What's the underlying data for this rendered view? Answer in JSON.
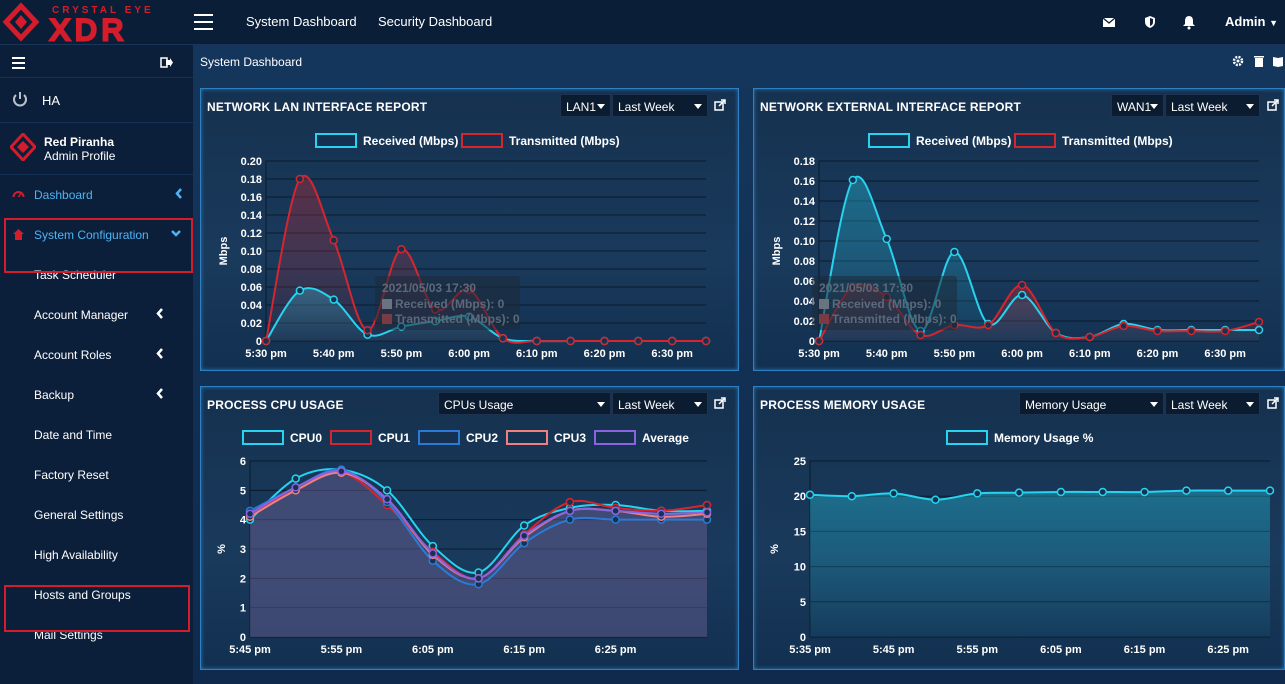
{
  "brand": {
    "top_text": "CRYSTAL EYE",
    "main_text": "XDR"
  },
  "topnav": {
    "system_dashboard": "System Dashboard",
    "security_dashboard": "Security Dashboard",
    "admin": "Admin"
  },
  "sidebar": {
    "ha_label": "HA",
    "profile": {
      "name": "Red Piranha",
      "role": "Admin Profile"
    },
    "items": [
      {
        "label": "Dashboard",
        "active": true,
        "chevron": "left"
      },
      {
        "label": "System Configuration",
        "active": true,
        "chevron": "down"
      },
      {
        "label": "Task Scheduler"
      },
      {
        "label": "Account Manager",
        "chevron": "left"
      },
      {
        "label": "Account Roles",
        "chevron": "left"
      },
      {
        "label": "Backup",
        "chevron": "left"
      },
      {
        "label": "Date and Time"
      },
      {
        "label": "Factory Reset"
      },
      {
        "label": "General Settings"
      },
      {
        "label": "High Availability"
      },
      {
        "label": "Hosts and Groups"
      },
      {
        "label": "Mail Settings"
      }
    ]
  },
  "main": {
    "title": "System Dashboard"
  },
  "colors": {
    "received": "#27d3ee",
    "transmitted": "#d5262f",
    "cpu0": "#27d3ee",
    "cpu1": "#d5262f",
    "cpu2": "#2b7bd6",
    "cpu3": "#f08080",
    "average": "#8a63e0",
    "memory": "#27d3ee",
    "highlight": "#d51c2a"
  },
  "panels": {
    "lan": {
      "title": "NETWORK LAN INTERFACE REPORT",
      "iface": "LAN1",
      "range": "Last Week"
    },
    "wan": {
      "title": "NETWORK EXTERNAL INTERFACE REPORT",
      "iface": "WAN1",
      "range": "Last Week"
    },
    "cpu": {
      "title": "PROCESS CPU USAGE",
      "mode": "CPUs Usage",
      "range": "Last Week"
    },
    "mem": {
      "title": "PROCESS MEMORY USAGE",
      "mode": "Memory Usage",
      "range": "Last Week"
    }
  },
  "chart_data": [
    {
      "id": "lan",
      "type": "line",
      "ylabel": "Mbps",
      "ylim": [
        0,
        0.2
      ],
      "yticks": [
        "0",
        "0.02",
        "0.04",
        "0.06",
        "0.08",
        "0.10",
        "0.12",
        "0.14",
        "0.16",
        "0.18",
        "0.20"
      ],
      "x": [
        0,
        1,
        2,
        3,
        4,
        5,
        6,
        7,
        8,
        9,
        10,
        11,
        12,
        13
      ],
      "xticks": [
        {
          "i": 0,
          "label": "5:30 pm"
        },
        {
          "i": 2,
          "label": "5:40 pm"
        },
        {
          "i": 4,
          "label": "5:50 pm"
        },
        {
          "i": 6,
          "label": "6:00 pm"
        },
        {
          "i": 8,
          "label": "6:10 pm"
        },
        {
          "i": 10,
          "label": "6:20 pm"
        },
        {
          "i": 12,
          "label": "6:30 pm"
        }
      ],
      "series": [
        {
          "name": "Received (Mbps)",
          "color": "received",
          "values": [
            0,
            0.056,
            0.046,
            0.007,
            0.016,
            0.022,
            0.027,
            0.003,
            0,
            0,
            0,
            0,
            0,
            0
          ]
        },
        {
          "name": "Transmitted (Mbps)",
          "color": "transmitted",
          "values": [
            0,
            0.18,
            0.112,
            0.012,
            0.102,
            0.035,
            0.057,
            0.003,
            0,
            0,
            0,
            0,
            0,
            0
          ]
        }
      ],
      "tooltip": {
        "time": "2021/05/03 17:30",
        "lines": [
          "Received (Mbps): 0",
          "Transmitted (Mbps): 0"
        ]
      }
    },
    {
      "id": "wan",
      "type": "line",
      "ylabel": "Mbps",
      "ylim": [
        0,
        0.18
      ],
      "yticks": [
        "0",
        "0.02",
        "0.04",
        "0.06",
        "0.08",
        "0.10",
        "0.12",
        "0.14",
        "0.16",
        "0.18"
      ],
      "x": [
        0,
        1,
        2,
        3,
        4,
        5,
        6,
        7,
        8,
        9,
        10,
        11,
        12,
        13
      ],
      "xticks": [
        {
          "i": 0,
          "label": "5:30 pm"
        },
        {
          "i": 2,
          "label": "5:40 pm"
        },
        {
          "i": 4,
          "label": "5:50 pm"
        },
        {
          "i": 6,
          "label": "6:00 pm"
        },
        {
          "i": 8,
          "label": "6:10 pm"
        },
        {
          "i": 10,
          "label": "6:20 pm"
        },
        {
          "i": 12,
          "label": "6:30 pm"
        }
      ],
      "series": [
        {
          "name": "Received (Mbps)",
          "color": "received",
          "values": [
            0,
            0.161,
            0.102,
            0.01,
            0.089,
            0.017,
            0.046,
            0.008,
            0.004,
            0.017,
            0.011,
            0.011,
            0.011,
            0.011
          ]
        },
        {
          "name": "Transmitted (Mbps)",
          "color": "transmitted",
          "values": [
            0,
            0.054,
            0.044,
            0.006,
            0.016,
            0.016,
            0.056,
            0.008,
            0.004,
            0.015,
            0.01,
            0.01,
            0.01,
            0.019
          ]
        }
      ],
      "tooltip": {
        "time": "2021/05/03 17:30",
        "lines": [
          "Received (Mbps): 0",
          "Transmitted (Mbps): 0"
        ]
      }
    },
    {
      "id": "cpu",
      "type": "line",
      "ylabel": "%",
      "ylim": [
        0,
        6
      ],
      "yticks": [
        "0",
        "1",
        "2",
        "3",
        "4",
        "5",
        "6"
      ],
      "x": [
        0,
        1,
        2,
        3,
        4,
        5,
        6,
        7,
        8,
        9,
        10
      ],
      "xticks": [
        {
          "i": 0,
          "label": "5:45 pm"
        },
        {
          "i": 2,
          "label": "5:55 pm"
        },
        {
          "i": 4,
          "label": "6:05 pm"
        },
        {
          "i": 6,
          "label": "6:15 pm"
        },
        {
          "i": 8,
          "label": "6:25 pm"
        }
      ],
      "series": [
        {
          "name": "CPU0",
          "color": "cpu0",
          "values": [
            4.0,
            5.4,
            5.7,
            5.0,
            3.1,
            2.2,
            3.8,
            4.4,
            4.5,
            4.3,
            4.3
          ]
        },
        {
          "name": "CPU1",
          "color": "cpu1",
          "values": [
            4.2,
            5.0,
            5.6,
            4.5,
            2.9,
            2.0,
            3.5,
            4.6,
            4.4,
            4.3,
            4.5
          ]
        },
        {
          "name": "CPU2",
          "color": "cpu2",
          "values": [
            4.3,
            5.1,
            5.7,
            4.6,
            2.6,
            1.8,
            3.2,
            4.0,
            4.0,
            4.0,
            4.0
          ]
        },
        {
          "name": "CPU3",
          "color": "cpu3",
          "values": [
            4.1,
            5.0,
            5.6,
            4.7,
            2.8,
            2.0,
            3.4,
            4.3,
            4.3,
            4.1,
            4.2
          ]
        },
        {
          "name": "Average",
          "color": "average",
          "values": [
            4.2,
            5.1,
            5.65,
            4.7,
            2.85,
            2.0,
            3.45,
            4.3,
            4.3,
            4.2,
            4.25
          ]
        }
      ]
    },
    {
      "id": "mem",
      "type": "line",
      "ylabel": "%",
      "ylim": [
        0,
        25
      ],
      "yticks": [
        "0",
        "5",
        "10",
        "15",
        "20",
        "25"
      ],
      "x": [
        0,
        1,
        2,
        3,
        4,
        5,
        6,
        7,
        8,
        9,
        10,
        11
      ],
      "xticks": [
        {
          "i": 0,
          "label": "5:35 pm"
        },
        {
          "i": 2,
          "label": "5:45 pm"
        },
        {
          "i": 4,
          "label": "5:55 pm"
        },
        {
          "i": 6,
          "label": "6:05 pm"
        },
        {
          "i": 8,
          "label": "6:15 pm"
        },
        {
          "i": 10,
          "label": "6:25 pm"
        }
      ],
      "series": [
        {
          "name": "Memory Usage %",
          "color": "memory",
          "values": [
            20.2,
            20.0,
            20.4,
            19.5,
            20.4,
            20.5,
            20.6,
            20.6,
            20.6,
            20.8,
            20.8,
            20.8
          ]
        }
      ]
    }
  ]
}
